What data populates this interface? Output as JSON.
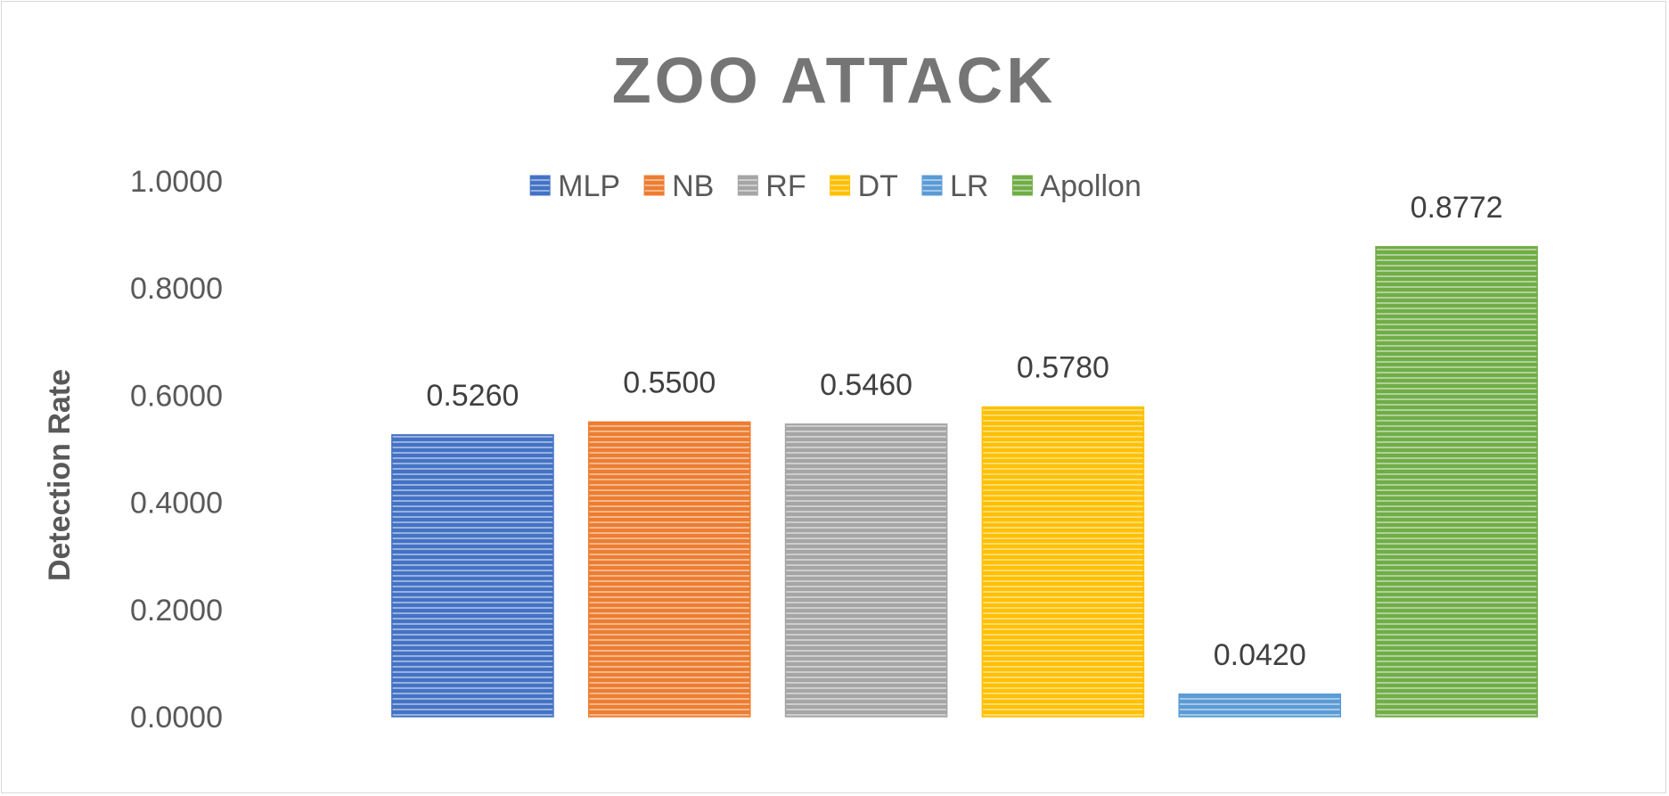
{
  "chart_data": {
    "type": "bar",
    "title": "ZOO ATTACK",
    "xlabel": "",
    "ylabel": "Detection Rate",
    "ylim": [
      0,
      1
    ],
    "yticks": [
      "0.0000",
      "0.2000",
      "0.4000",
      "0.6000",
      "0.8000",
      "1.0000"
    ],
    "grid": false,
    "legend_position": "top",
    "series": [
      {
        "name": "MLP",
        "value": 0.526,
        "label": "0.5260",
        "color": "#4472C4"
      },
      {
        "name": "NB",
        "value": 0.55,
        "label": "0.5500",
        "color": "#ED7D31"
      },
      {
        "name": "RF",
        "value": 0.546,
        "label": "0.5460",
        "color": "#A5A5A5"
      },
      {
        "name": "DT",
        "value": 0.578,
        "label": "0.5780",
        "color": "#FFC000"
      },
      {
        "name": "LR",
        "value": 0.042,
        "label": "0.0420",
        "color": "#5B9BD5"
      },
      {
        "name": "Apollon",
        "value": 0.8772,
        "label": "0.8772",
        "color": "#70AD47"
      }
    ]
  }
}
